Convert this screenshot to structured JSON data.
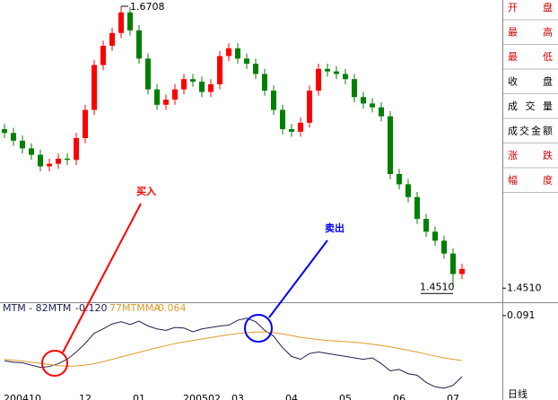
{
  "chart_data": [
    {
      "type": "candlestick",
      "open": [
        1.575,
        1.572,
        1.566,
        1.56,
        1.555,
        1.546,
        1.548,
        1.552,
        1.551,
        1.568,
        1.59,
        1.625,
        1.64,
        1.65,
        1.666,
        1.652,
        1.63,
        1.606,
        1.594,
        1.598,
        1.606,
        1.614,
        1.612,
        1.604,
        1.61,
        1.632,
        1.638,
        1.63,
        1.626,
        1.618,
        1.605,
        1.59,
        1.575,
        1.573,
        1.58,
        1.605,
        1.622,
        1.62,
        1.618,
        1.614,
        1.6,
        1.595,
        1.592,
        1.585,
        1.54,
        1.532,
        1.522,
        1.505,
        1.495,
        1.488,
        1.478,
        1.462
      ],
      "high": [
        1.579,
        1.576,
        1.57,
        1.564,
        1.559,
        1.552,
        1.556,
        1.556,
        1.572,
        1.594,
        1.629,
        1.644,
        1.654,
        1.6708,
        1.67,
        1.656,
        1.634,
        1.61,
        1.602,
        1.61,
        1.618,
        1.618,
        1.616,
        1.614,
        1.636,
        1.642,
        1.642,
        1.634,
        1.63,
        1.622,
        1.609,
        1.594,
        1.579,
        1.584,
        1.609,
        1.626,
        1.626,
        1.624,
        1.622,
        1.618,
        1.604,
        1.599,
        1.596,
        1.589,
        1.544,
        1.536,
        1.526,
        1.509,
        1.499,
        1.492,
        1.482,
        1.47
      ],
      "low": [
        1.568,
        1.562,
        1.556,
        1.551,
        1.542,
        1.542,
        1.544,
        1.547,
        1.547,
        1.564,
        1.586,
        1.621,
        1.636,
        1.646,
        1.648,
        1.626,
        1.602,
        1.59,
        1.59,
        1.594,
        1.602,
        1.608,
        1.6,
        1.6,
        1.606,
        1.628,
        1.626,
        1.622,
        1.614,
        1.601,
        1.586,
        1.571,
        1.569,
        1.569,
        1.576,
        1.601,
        1.616,
        1.614,
        1.61,
        1.596,
        1.591,
        1.588,
        1.581,
        1.536,
        1.528,
        1.518,
        1.501,
        1.491,
        1.484,
        1.474,
        1.451,
        1.458
      ],
      "close": [
        1.572,
        1.566,
        1.56,
        1.555,
        1.546,
        1.548,
        1.552,
        1.551,
        1.568,
        1.59,
        1.625,
        1.64,
        1.65,
        1.666,
        1.652,
        1.63,
        1.606,
        1.594,
        1.598,
        1.606,
        1.614,
        1.612,
        1.604,
        1.61,
        1.632,
        1.638,
        1.63,
        1.626,
        1.618,
        1.605,
        1.59,
        1.575,
        1.573,
        1.58,
        1.605,
        1.622,
        1.62,
        1.618,
        1.614,
        1.6,
        1.595,
        1.592,
        1.585,
        1.54,
        1.532,
        1.522,
        1.505,
        1.495,
        1.488,
        1.478,
        1.462,
        1.466
      ],
      "up_color": "#ff0000",
      "down_color": "#008000",
      "ylim": [
        1.44,
        1.675
      ],
      "yticks": [
        {
          "value": 1.451,
          "label": "1.4510"
        }
      ],
      "extremes": [
        {
          "value": 1.6708,
          "label": "1.6708"
        },
        {
          "value": 1.451,
          "label": "1.4510"
        }
      ]
    },
    {
      "type": "line",
      "categories": [
        null,
        null,
        "200410",
        null,
        null,
        null,
        null,
        null,
        null,
        "12",
        null,
        null,
        null,
        null,
        null,
        "01",
        null,
        null,
        null,
        null,
        null,
        null,
        "200502",
        null,
        null,
        null,
        "03",
        null,
        null,
        null,
        null,
        null,
        "04",
        null,
        null,
        null,
        null,
        null,
        "05",
        null,
        null,
        null,
        null,
        null,
        "06",
        null,
        null,
        null,
        null,
        null,
        "07",
        null
      ],
      "series": [
        {
          "name": "MTM - 82MTM",
          "color": "#1c2050",
          "last": {
            "value": -0.12,
            "label": "-0.120"
          },
          "values": [
            -0.065,
            -0.07,
            -0.072,
            -0.08,
            -0.088,
            -0.085,
            -0.075,
            -0.06,
            -0.035,
            -0.005,
            0.03,
            0.045,
            0.062,
            0.07,
            0.06,
            0.072,
            0.055,
            0.045,
            0.04,
            0.05,
            0.048,
            0.035,
            0.045,
            0.05,
            0.055,
            0.058,
            0.075,
            0.082,
            0.07,
            0.04,
            0.02,
            -0.02,
            -0.05,
            -0.06,
            -0.04,
            -0.035,
            -0.04,
            -0.045,
            -0.05,
            -0.055,
            -0.06,
            -0.055,
            -0.075,
            -0.1,
            -0.095,
            -0.11,
            -0.115,
            -0.14,
            -0.155,
            -0.16,
            -0.15,
            -0.12
          ]
        },
        {
          "name": "77MTMMA",
          "color": "#e09a2a",
          "last": {
            "value": -0.064,
            "label": "-0.064"
          },
          "values": [
            -0.06,
            -0.063,
            -0.066,
            -0.07,
            -0.074,
            -0.078,
            -0.082,
            -0.084,
            -0.083,
            -0.08,
            -0.075,
            -0.068,
            -0.06,
            -0.052,
            -0.044,
            -0.036,
            -0.028,
            -0.02,
            -0.013,
            -0.006,
            0.0,
            0.005,
            0.01,
            0.015,
            0.02,
            0.025,
            0.029,
            0.032,
            0.034,
            0.034,
            0.032,
            0.028,
            0.022,
            0.016,
            0.012,
            0.008,
            0.005,
            0.003,
            0.001,
            -0.001,
            -0.004,
            -0.008,
            -0.012,
            -0.017,
            -0.023,
            -0.029,
            -0.035,
            -0.042,
            -0.049,
            -0.055,
            -0.06,
            -0.064
          ]
        }
      ],
      "ylim": [
        -0.182,
        0.134
      ],
      "yticks": [
        {
          "value": 0.091,
          "label": "0.091"
        }
      ]
    }
  ],
  "panel_labels": [
    {
      "text": "开盘",
      "color": "#cc0000"
    },
    {
      "text": "最高",
      "color": "#cc0000"
    },
    {
      "text": "最低",
      "color": "#cc0000"
    },
    {
      "text": "收盘",
      "color": "#000000"
    },
    {
      "text": "成交量",
      "color": "#000000"
    },
    {
      "text": "成交金额",
      "color": "#000000"
    },
    {
      "text": "涨跌",
      "color": "#cc0000"
    },
    {
      "text": "幅度",
      "color": "#cc0000"
    }
  ],
  "period": "日线",
  "annotations": [
    {
      "text": "买入",
      "color": "#ff0000"
    },
    {
      "text": "卖出",
      "color": "#0000ff"
    }
  ]
}
